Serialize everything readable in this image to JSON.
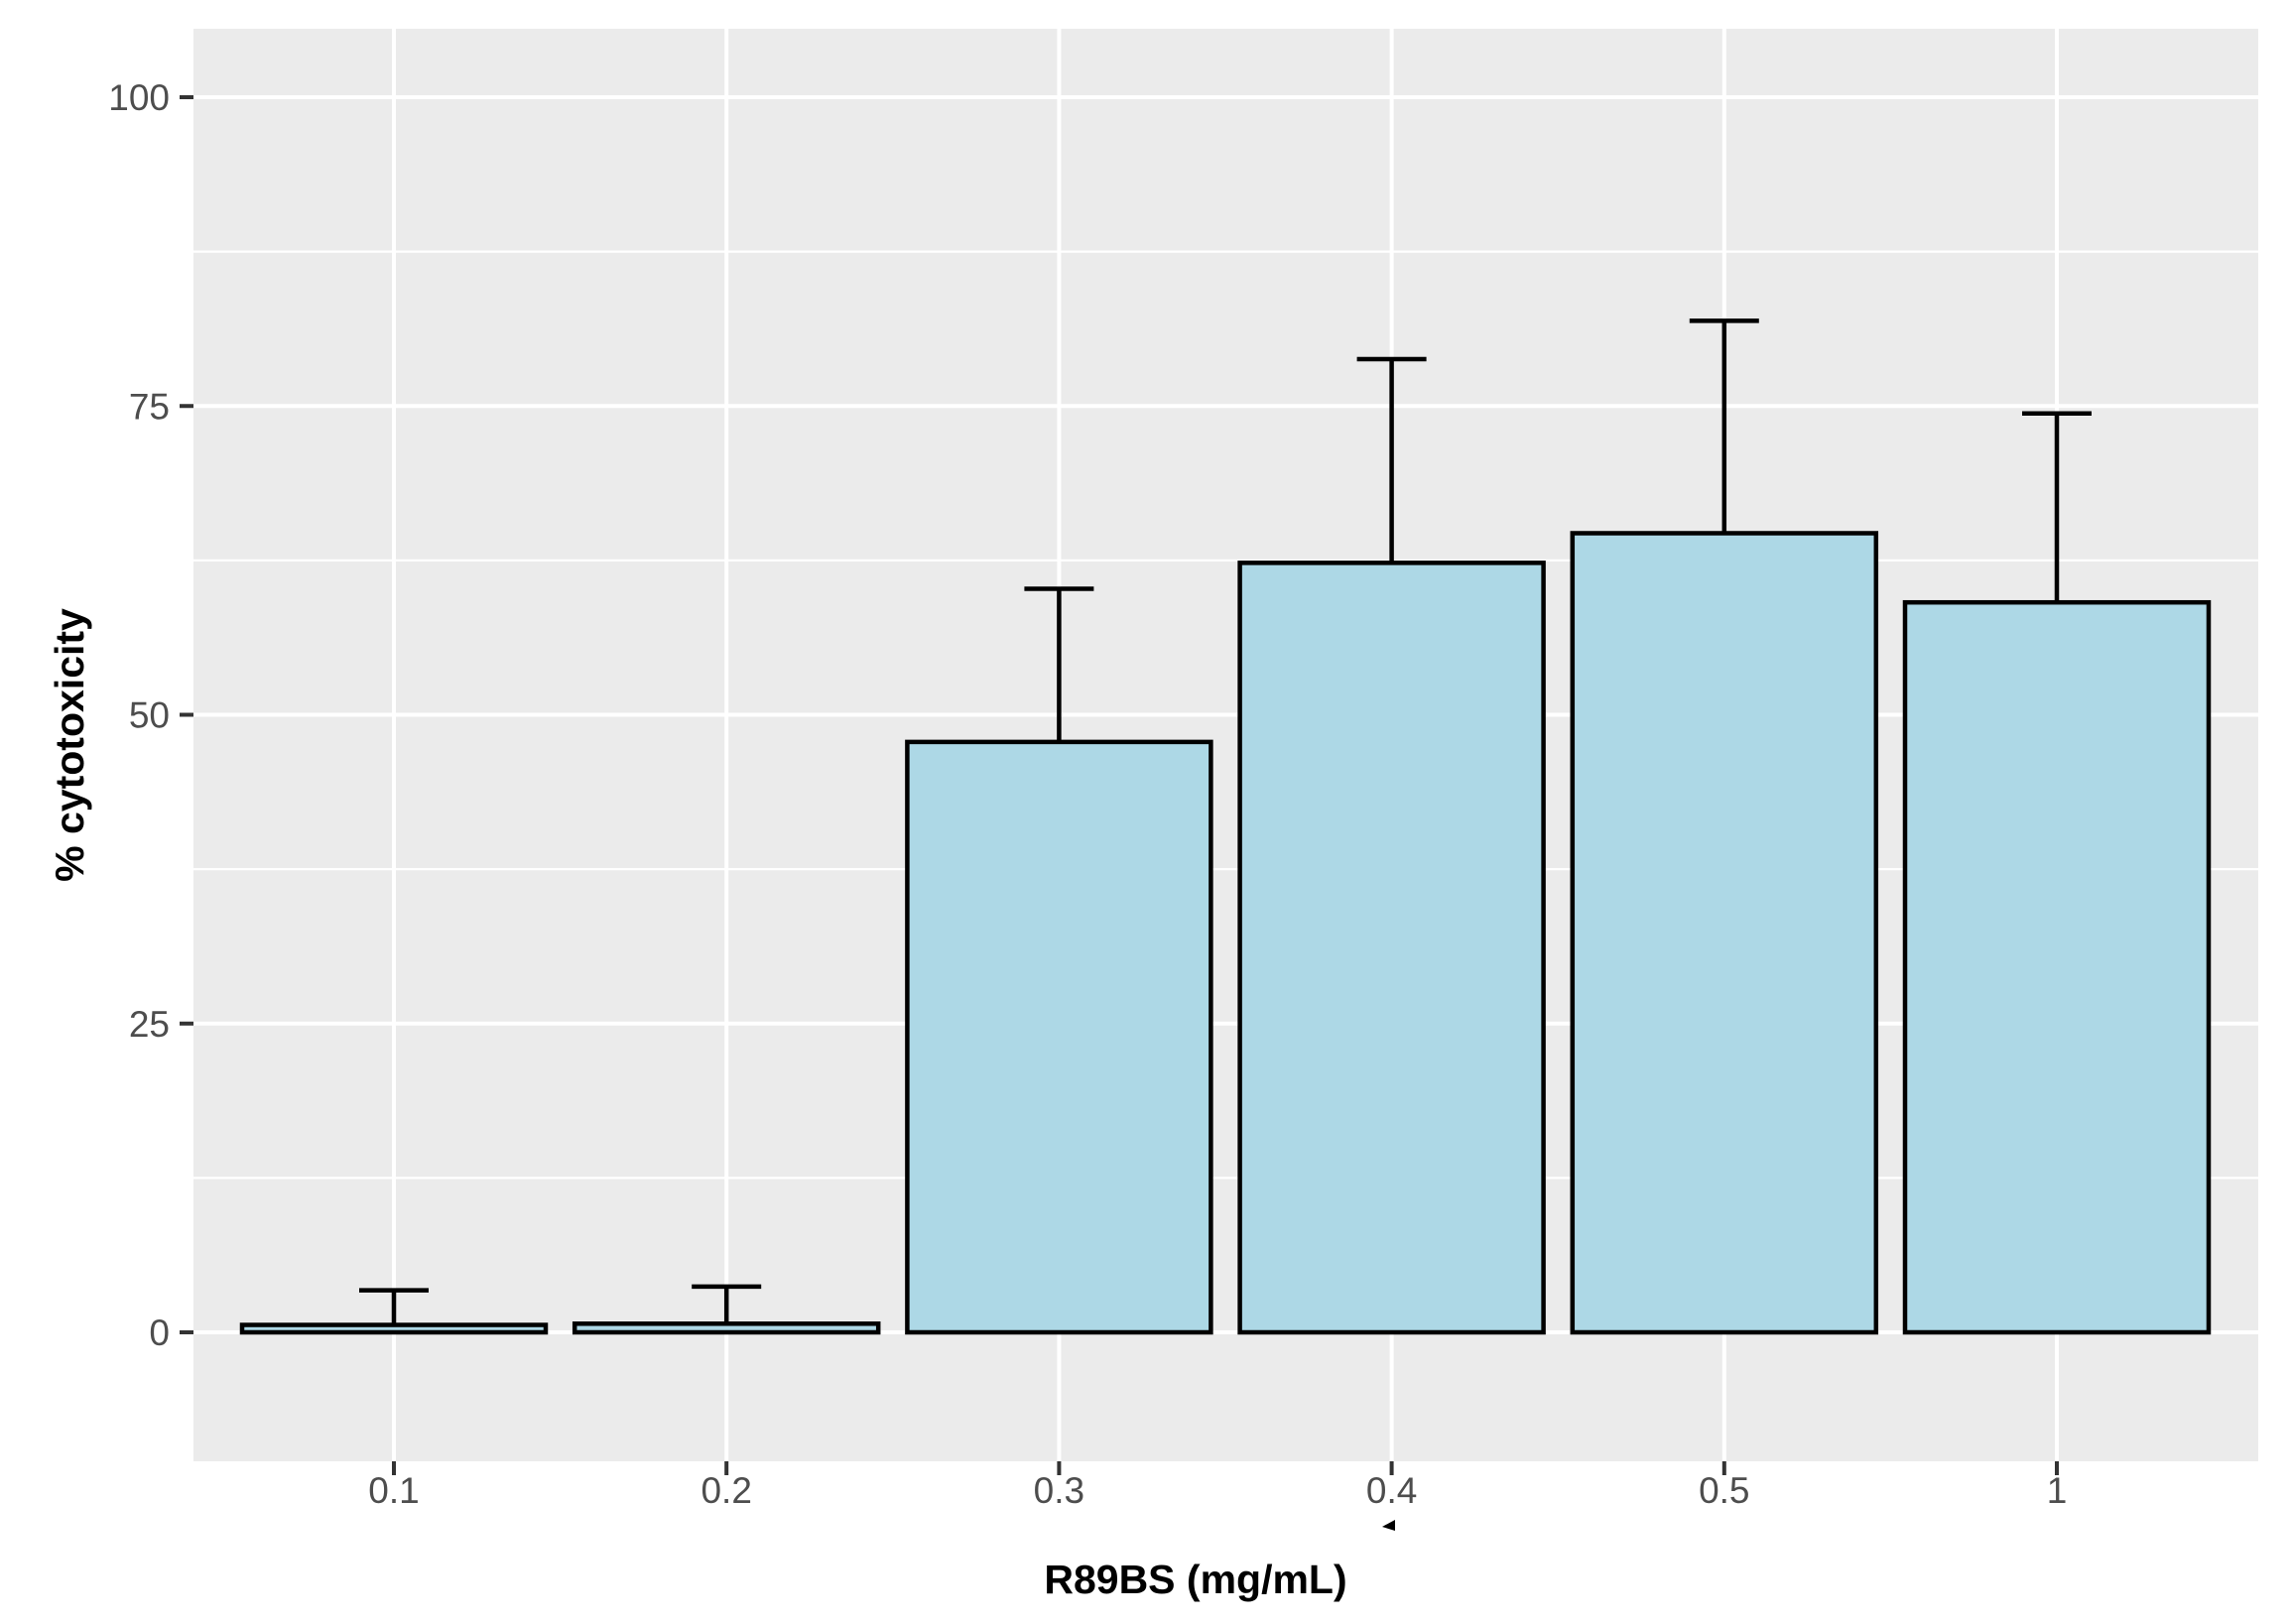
{
  "chart_data": {
    "type": "bar",
    "title": "",
    "xlabel": "R89BS (mg/mL)",
    "ylabel": "% cytotoxicity",
    "categories": [
      "0.1",
      "0.2",
      "0.3",
      "0.4",
      "0.5",
      "1"
    ],
    "series": [
      {
        "name": "% cytotoxicity",
        "values": [
          0.6,
          0.7,
          47.8,
          62.3,
          64.7,
          59.1
        ],
        "error_upper": [
          3.4,
          3.7,
          60.2,
          78.8,
          81.9,
          74.4
        ]
      }
    ],
    "y_ticks": [
      0,
      25,
      50,
      75,
      100
    ],
    "y_minor_gridlines": [
      12.5,
      37.5,
      62.5,
      87.5
    ],
    "ylim": [
      0,
      100
    ],
    "panel_value_range": [
      -10.4,
      105.6
    ],
    "grid": "on",
    "legend": "none",
    "style": "ggplot2-gray",
    "colors": {
      "bar_fill": "#ADD8E6",
      "bar_stroke": "#000000",
      "error_bar": "#000000",
      "panel_background": "#EBEBEB",
      "gridline": "#FFFFFF",
      "tick_label": "#4D4D4D",
      "tick_mark": "#333333",
      "axis_title": "#000000",
      "figure_background": "#FFFFFF"
    },
    "artifact_note": "small black triangle mark just below the 0.4 x-axis label"
  }
}
